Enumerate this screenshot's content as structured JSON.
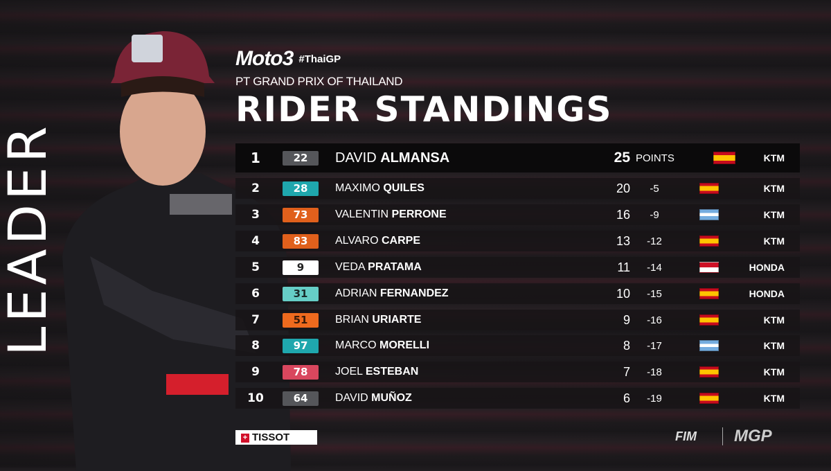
{
  "side_label": "LEADER",
  "header": {
    "series_logo": "Moto3",
    "hashtag": "#ThaiGP",
    "event": "PT GRAND PRIX OF THAILAND",
    "title": "RIDER STANDINGS"
  },
  "leader": {
    "pos": "1",
    "number": "22",
    "first": "DAVID",
    "last": "ALMANSA",
    "points": "25",
    "points_label": "POINTS",
    "flag": "es",
    "team": "KTM",
    "badge_bg": "#55565a",
    "badge_fg": "#ffffff"
  },
  "rows": [
    {
      "pos": "2",
      "number": "28",
      "first": "MAXIMO",
      "last": "QUILES",
      "points": "20",
      "gap": "-5",
      "flag": "es",
      "team": "KTM",
      "badge_bg": "#1fa7ad",
      "badge_fg": "#ffffff"
    },
    {
      "pos": "3",
      "number": "73",
      "first": "VALENTIN",
      "last": "PERRONE",
      "points": "16",
      "gap": "-9",
      "flag": "ar",
      "team": "KTM",
      "badge_bg": "#e0601c",
      "badge_fg": "#ffffff"
    },
    {
      "pos": "4",
      "number": "83",
      "first": "ALVARO",
      "last": "CARPE",
      "points": "13",
      "gap": "-12",
      "flag": "es",
      "team": "KTM",
      "badge_bg": "#e0601c",
      "badge_fg": "#ffffff"
    },
    {
      "pos": "5",
      "number": "9",
      "first": "VEDA",
      "last": "PRATAMA",
      "points": "11",
      "gap": "-14",
      "flag": "id",
      "team": "HONDA",
      "badge_bg": "#ffffff",
      "badge_fg": "#222222"
    },
    {
      "pos": "6",
      "number": "31",
      "first": "ADRIAN",
      "last": "FERNANDEZ",
      "points": "10",
      "gap": "-15",
      "flag": "es",
      "team": "HONDA",
      "badge_bg": "#66cdc6",
      "badge_fg": "#1a2a2a"
    },
    {
      "pos": "7",
      "number": "51",
      "first": "BRIAN",
      "last": "URIARTE",
      "points": "9",
      "gap": "-16",
      "flag": "es",
      "team": "KTM",
      "badge_bg": "#ee6a1e",
      "badge_fg": "#3a1a08"
    },
    {
      "pos": "8",
      "number": "97",
      "first": "MARCO",
      "last": "MORELLI",
      "points": "8",
      "gap": "-17",
      "flag": "ar",
      "team": "KTM",
      "badge_bg": "#1fa7ad",
      "badge_fg": "#ffffff"
    },
    {
      "pos": "9",
      "number": "78",
      "first": "JOEL",
      "last": "ESTEBAN",
      "points": "7",
      "gap": "-18",
      "flag": "es",
      "team": "KTM",
      "badge_bg": "#d9475e",
      "badge_fg": "#ffffff"
    },
    {
      "pos": "10",
      "number": "64",
      "first": "DAVID",
      "last": "MUÑOZ",
      "points": "6",
      "gap": "-19",
      "flag": "es",
      "team": "KTM",
      "badge_bg": "#55565a",
      "badge_fg": "#ffffff"
    }
  ],
  "footer": {
    "sponsor": "TISSOT",
    "fim": "FIM",
    "mgp": "MGP"
  }
}
